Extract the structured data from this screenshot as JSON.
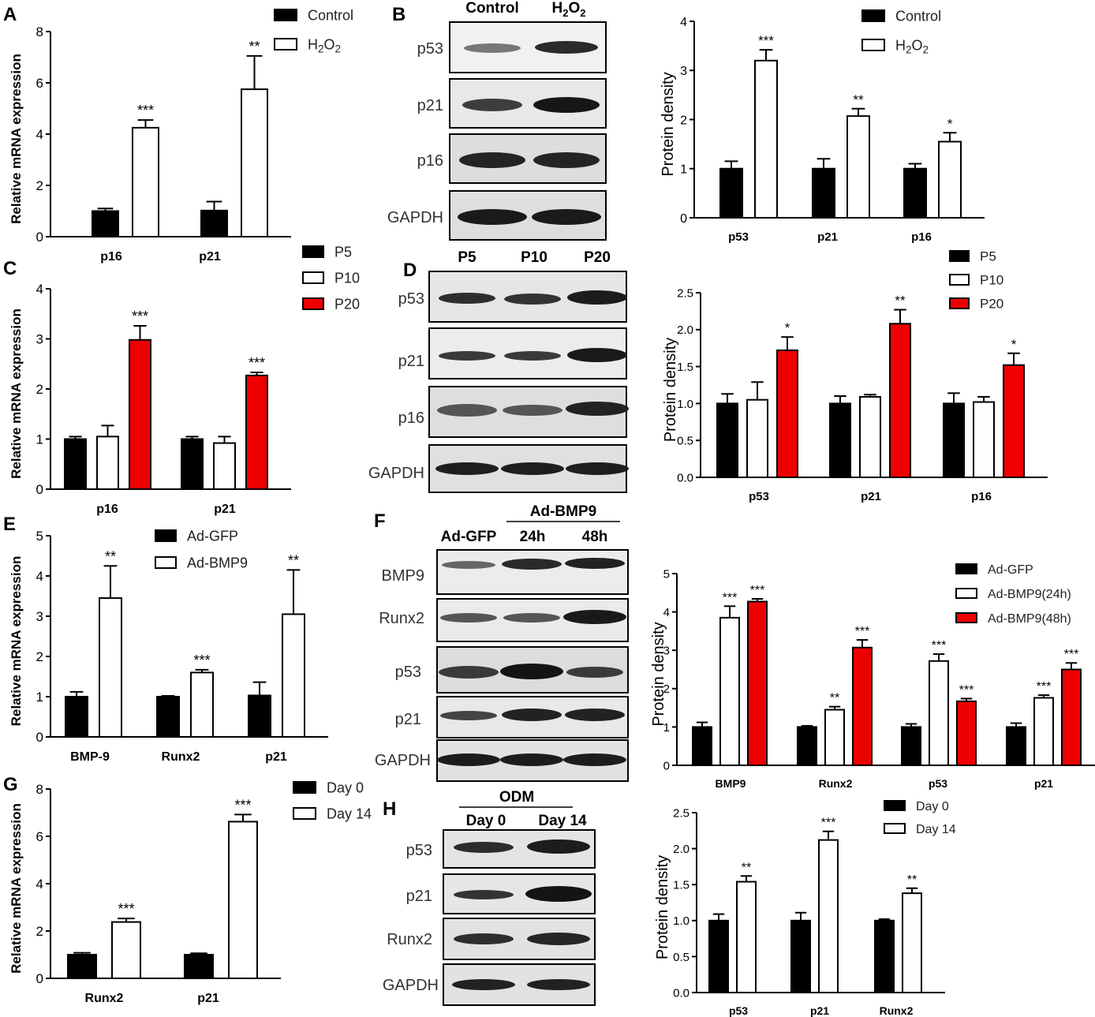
{
  "colors": {
    "black": "#000000",
    "white": "#ffffff",
    "red": "#ee0000"
  },
  "panels": {
    "A": {
      "letter": "A"
    },
    "B": {
      "letter": "B",
      "blot_columns": [
        "Control",
        "H2O2"
      ],
      "blot_rows": [
        "p53",
        "p21",
        "p16",
        "GAPDH"
      ]
    },
    "C": {
      "letter": "C"
    },
    "D": {
      "letter": "D",
      "blot_columns": [
        "P5",
        "P10",
        "P20"
      ],
      "blot_rows": [
        "p53",
        "p21",
        "p16",
        "GAPDH"
      ]
    },
    "E": {
      "letter": "E"
    },
    "F": {
      "letter": "F",
      "group_label": "Ad-BMP9",
      "blot_columns": [
        "Ad-GFP",
        "24h",
        "48h"
      ],
      "blot_rows": [
        "BMP9",
        "Runx2",
        "p53",
        "p21",
        "GAPDH"
      ]
    },
    "G": {
      "letter": "G"
    },
    "H": {
      "letter": "H",
      "group_label": "ODM",
      "blot_columns": [
        "Day 0",
        "Day 14"
      ],
      "blot_rows": [
        "p53",
        "p21",
        "Runx2",
        "GAPDH"
      ]
    }
  },
  "chart_data": [
    {
      "id": "A",
      "type": "bar",
      "ylabel": "Relative mRNA expression",
      "ylim": [
        0,
        8
      ],
      "yticks": [
        "0",
        "2",
        "4",
        "6",
        "8"
      ],
      "categories": [
        "p16",
        "p21"
      ],
      "series": [
        {
          "name": "Control",
          "fill": "#000000",
          "values": [
            1.0,
            1.02
          ],
          "errors": [
            0.1,
            0.35
          ],
          "stars": [
            "",
            ""
          ]
        },
        {
          "name": "H₂O₂",
          "fill": "#ffffff",
          "values": [
            4.25,
            5.75
          ],
          "errors": [
            0.3,
            1.3
          ],
          "stars": [
            "***",
            "**"
          ]
        }
      ],
      "legend": "top-right"
    },
    {
      "id": "B",
      "type": "bar",
      "ylabel": "Protein density",
      "ylim": [
        0,
        4
      ],
      "yticks": [
        "0",
        "1",
        "2",
        "3",
        "4"
      ],
      "categories": [
        "p53",
        "p21",
        "p16"
      ],
      "series": [
        {
          "name": "Control",
          "fill": "#000000",
          "values": [
            1.0,
            1.0,
            1.0
          ],
          "errors": [
            0.15,
            0.2,
            0.1
          ],
          "stars": [
            "",
            "",
            ""
          ]
        },
        {
          "name": "H₂O₂",
          "fill": "#ffffff",
          "values": [
            3.2,
            2.07,
            1.55
          ],
          "errors": [
            0.22,
            0.15,
            0.18
          ],
          "stars": [
            "***",
            "**",
            "*"
          ]
        }
      ],
      "legend": "top-right"
    },
    {
      "id": "C",
      "type": "bar",
      "ylabel": "Relative mRNA expression",
      "ylim": [
        0,
        4
      ],
      "yticks": [
        "0",
        "1",
        "2",
        "3",
        "4"
      ],
      "categories": [
        "p16",
        "p21"
      ],
      "series": [
        {
          "name": "P5",
          "fill": "#000000",
          "values": [
            1.0,
            1.0
          ],
          "errors": [
            0.05,
            0.05
          ],
          "stars": [
            "",
            ""
          ]
        },
        {
          "name": "P10",
          "fill": "#ffffff",
          "values": [
            1.05,
            0.92
          ],
          "errors": [
            0.22,
            0.13
          ],
          "stars": [
            "",
            ""
          ]
        },
        {
          "name": "P20",
          "fill": "#ee0000",
          "values": [
            2.98,
            2.27
          ],
          "errors": [
            0.28,
            0.06
          ],
          "stars": [
            "***",
            "***"
          ]
        }
      ],
      "legend": "top-right"
    },
    {
      "id": "D",
      "type": "bar",
      "ylabel": "Protein density",
      "ylim": [
        0,
        2.5
      ],
      "yticks": [
        "0.0",
        "0.5",
        "1.0",
        "1.5",
        "2.0",
        "2.5"
      ],
      "categories": [
        "p53",
        "p21",
        "p16"
      ],
      "series": [
        {
          "name": "P5",
          "fill": "#000000",
          "values": [
            1.0,
            1.0,
            1.0
          ],
          "errors": [
            0.13,
            0.1,
            0.14
          ],
          "stars": [
            "",
            "",
            ""
          ]
        },
        {
          "name": "P10",
          "fill": "#ffffff",
          "values": [
            1.05,
            1.09,
            1.02
          ],
          "errors": [
            0.24,
            0.03,
            0.07
          ],
          "stars": [
            "",
            "",
            ""
          ]
        },
        {
          "name": "P20",
          "fill": "#ee0000",
          "values": [
            1.72,
            2.08,
            1.52
          ],
          "errors": [
            0.18,
            0.19,
            0.16
          ],
          "stars": [
            "*",
            "**",
            "*"
          ]
        }
      ],
      "legend": "top-right"
    },
    {
      "id": "E",
      "type": "bar",
      "ylabel": "Relative mRNA expression",
      "ylim": [
        0,
        5
      ],
      "yticks": [
        "0",
        "1",
        "2",
        "3",
        "4",
        "5"
      ],
      "categories": [
        "BMP-9",
        "Runx2",
        "p21"
      ],
      "series": [
        {
          "name": "Ad-GFP",
          "fill": "#000000",
          "values": [
            1.0,
            1.0,
            1.03
          ],
          "errors": [
            0.12,
            0.02,
            0.33
          ],
          "stars": [
            "",
            "",
            ""
          ]
        },
        {
          "name": "Ad-BMP9",
          "fill": "#ffffff",
          "values": [
            3.45,
            1.6,
            3.05
          ],
          "errors": [
            0.8,
            0.07,
            1.1
          ],
          "stars": [
            "**",
            "***",
            "**"
          ]
        }
      ],
      "legend": "top-right"
    },
    {
      "id": "F",
      "type": "bar",
      "ylabel": "Protein density",
      "ylim": [
        0,
        5
      ],
      "yticks": [
        "0",
        "1",
        "2",
        "3",
        "4",
        "5"
      ],
      "categories": [
        "BMP9",
        "Runx2",
        "p53",
        "p21"
      ],
      "series": [
        {
          "name": "Ad-GFP",
          "fill": "#000000",
          "values": [
            1.0,
            1.0,
            1.0,
            1.0
          ],
          "errors": [
            0.12,
            0.03,
            0.08,
            0.1
          ],
          "stars": [
            "",
            "",
            "",
            ""
          ]
        },
        {
          "name": "Ad-BMP9(24h)",
          "fill": "#ffffff",
          "values": [
            3.85,
            1.45,
            2.72,
            1.76
          ],
          "errors": [
            0.3,
            0.08,
            0.18,
            0.07
          ],
          "stars": [
            "***",
            "**",
            "***",
            "***"
          ]
        },
        {
          "name": "Ad-BMP9(48h)",
          "fill": "#ee0000",
          "values": [
            4.27,
            3.07,
            1.67,
            2.5
          ],
          "errors": [
            0.07,
            0.2,
            0.07,
            0.17
          ],
          "stars": [
            "***",
            "***",
            "***",
            "***"
          ]
        }
      ],
      "legend": "top-right"
    },
    {
      "id": "G",
      "type": "bar",
      "ylabel": "Relative mRNA expression",
      "ylim": [
        0,
        8
      ],
      "yticks": [
        "0",
        "2",
        "4",
        "6",
        "8"
      ],
      "categories": [
        "Runx2",
        "p21"
      ],
      "series": [
        {
          "name": "Day 0",
          "fill": "#000000",
          "values": [
            1.0,
            1.0
          ],
          "errors": [
            0.08,
            0.06
          ],
          "stars": [
            "",
            ""
          ]
        },
        {
          "name": "Day 14",
          "fill": "#ffffff",
          "values": [
            2.38,
            6.62
          ],
          "errors": [
            0.15,
            0.3
          ],
          "stars": [
            "***",
            "***"
          ]
        }
      ],
      "legend": "top-right"
    },
    {
      "id": "H",
      "type": "bar",
      "ylabel": "Protein density",
      "ylim": [
        0,
        2.5
      ],
      "yticks": [
        "0.0",
        "0.5",
        "1.0",
        "1.5",
        "2.0",
        "2.5"
      ],
      "categories": [
        "p53",
        "p21",
        "Runx2"
      ],
      "series": [
        {
          "name": "Day 0",
          "fill": "#000000",
          "values": [
            1.0,
            1.0,
            1.0
          ],
          "errors": [
            0.09,
            0.11,
            0.02
          ],
          "stars": [
            "",
            "",
            ""
          ]
        },
        {
          "name": "Day 14",
          "fill": "#ffffff",
          "values": [
            1.54,
            2.12,
            1.38
          ],
          "errors": [
            0.08,
            0.12,
            0.07
          ],
          "stars": [
            "**",
            "***",
            "**"
          ]
        }
      ],
      "legend": "top-right"
    }
  ]
}
